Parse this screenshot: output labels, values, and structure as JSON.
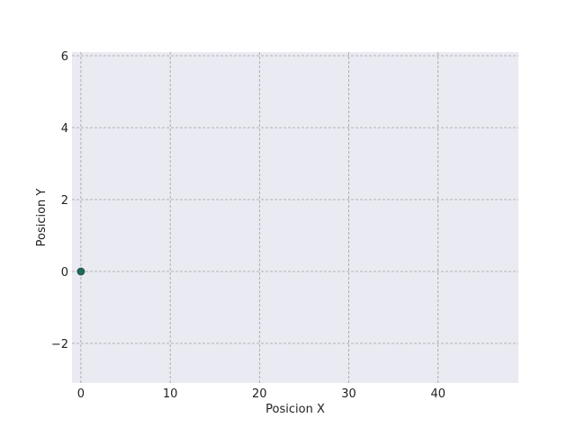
{
  "chart_data": {
    "type": "scatter",
    "title": "",
    "xlabel": "Posicion X",
    "ylabel": "Posicion Y",
    "xlim": [
      -1,
      49
    ],
    "ylim": [
      -3.1,
      6.1
    ],
    "xticks": [
      0,
      10,
      20,
      30,
      40
    ],
    "xtick_labels": [
      "0",
      "10",
      "20",
      "30",
      "40"
    ],
    "yticks": [
      -2,
      0,
      2,
      4,
      6
    ],
    "ytick_labels": [
      "−2",
      "0",
      "2",
      "4",
      "6"
    ],
    "grid": true,
    "series": [
      {
        "x": [
          0
        ],
        "y": [
          0
        ]
      }
    ],
    "colors": {
      "plot_background": "#EAEAF2",
      "grid": "#A0A0A0",
      "marker": "#1B6B5A",
      "marker_edge": "#2E4A44"
    }
  }
}
